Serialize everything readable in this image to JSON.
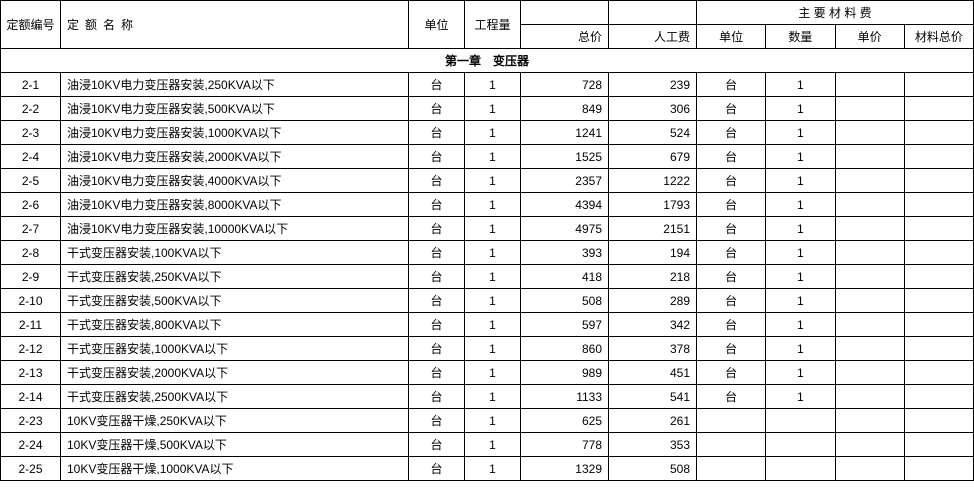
{
  "headers": {
    "code": "定额编号",
    "name": "定额名称",
    "unit": "单位",
    "qty": "工程量",
    "material_group": "主 要 材 料 费",
    "total": "总价",
    "labor": "人工费",
    "munit": "单位",
    "mqty": "数量",
    "mprice": "单价",
    "mtotal": "材料总价"
  },
  "section_title": "第一章　变压器",
  "rows": [
    {
      "code": "2-1",
      "name": "油浸10KV电力变压器安装,250KVA以下",
      "unit": "台",
      "qty": "1",
      "total": "728",
      "labor": "239",
      "munit": "台",
      "mqty": "1",
      "mprice": "",
      "mtotal": ""
    },
    {
      "code": "2-2",
      "name": "油浸10KV电力变压器安装,500KVA以下",
      "unit": "台",
      "qty": "1",
      "total": "849",
      "labor": "306",
      "munit": "台",
      "mqty": "1",
      "mprice": "",
      "mtotal": ""
    },
    {
      "code": "2-3",
      "name": "油浸10KV电力变压器安装,1000KVA以下",
      "unit": "台",
      "qty": "1",
      "total": "1241",
      "labor": "524",
      "munit": "台",
      "mqty": "1",
      "mprice": "",
      "mtotal": ""
    },
    {
      "code": "2-4",
      "name": "油浸10KV电力变压器安装,2000KVA以下",
      "unit": "台",
      "qty": "1",
      "total": "1525",
      "labor": "679",
      "munit": "台",
      "mqty": "1",
      "mprice": "",
      "mtotal": ""
    },
    {
      "code": "2-5",
      "name": "油浸10KV电力变压器安装,4000KVA以下",
      "unit": "台",
      "qty": "1",
      "total": "2357",
      "labor": "1222",
      "munit": "台",
      "mqty": "1",
      "mprice": "",
      "mtotal": ""
    },
    {
      "code": "2-6",
      "name": "油浸10KV电力变压器安装,8000KVA以下",
      "unit": "台",
      "qty": "1",
      "total": "4394",
      "labor": "1793",
      "munit": "台",
      "mqty": "1",
      "mprice": "",
      "mtotal": ""
    },
    {
      "code": "2-7",
      "name": "油浸10KV电力变压器安装,10000KVA以下",
      "unit": "台",
      "qty": "1",
      "total": "4975",
      "labor": "2151",
      "munit": "台",
      "mqty": "1",
      "mprice": "",
      "mtotal": ""
    },
    {
      "code": "2-8",
      "name": "干式变压器安装,100KVA以下",
      "unit": "台",
      "qty": "1",
      "total": "393",
      "labor": "194",
      "munit": "台",
      "mqty": "1",
      "mprice": "",
      "mtotal": ""
    },
    {
      "code": "2-9",
      "name": "干式变压器安装,250KVA以下",
      "unit": "台",
      "qty": "1",
      "total": "418",
      "labor": "218",
      "munit": "台",
      "mqty": "1",
      "mprice": "",
      "mtotal": ""
    },
    {
      "code": "2-10",
      "name": "干式变压器安装,500KVA以下",
      "unit": "台",
      "qty": "1",
      "total": "508",
      "labor": "289",
      "munit": "台",
      "mqty": "1",
      "mprice": "",
      "mtotal": ""
    },
    {
      "code": "2-11",
      "name": "干式变压器安装,800KVA以下",
      "unit": "台",
      "qty": "1",
      "total": "597",
      "labor": "342",
      "munit": "台",
      "mqty": "1",
      "mprice": "",
      "mtotal": ""
    },
    {
      "code": "2-12",
      "name": "干式变压器安装,1000KVA以下",
      "unit": "台",
      "qty": "1",
      "total": "860",
      "labor": "378",
      "munit": "台",
      "mqty": "1",
      "mprice": "",
      "mtotal": ""
    },
    {
      "code": "2-13",
      "name": "干式变压器安装,2000KVA以下",
      "unit": "台",
      "qty": "1",
      "total": "989",
      "labor": "451",
      "munit": "台",
      "mqty": "1",
      "mprice": "",
      "mtotal": ""
    },
    {
      "code": "2-14",
      "name": "干式变压器安装,2500KVA以下",
      "unit": "台",
      "qty": "1",
      "total": "1133",
      "labor": "541",
      "munit": "台",
      "mqty": "1",
      "mprice": "",
      "mtotal": ""
    },
    {
      "code": "2-23",
      "name": "10KV变压器干燥,250KVA以下",
      "unit": "台",
      "qty": "1",
      "total": "625",
      "labor": "261",
      "munit": "",
      "mqty": "",
      "mprice": "",
      "mtotal": ""
    },
    {
      "code": "2-24",
      "name": "10KV变压器干燥,500KVA以下",
      "unit": "台",
      "qty": "1",
      "total": "778",
      "labor": "353",
      "munit": "",
      "mqty": "",
      "mprice": "",
      "mtotal": ""
    },
    {
      "code": "2-25",
      "name": "10KV变压器干燥,1000KVA以下",
      "unit": "台",
      "qty": "1",
      "total": "1329",
      "labor": "508",
      "munit": "",
      "mqty": "",
      "mprice": "",
      "mtotal": ""
    }
  ]
}
